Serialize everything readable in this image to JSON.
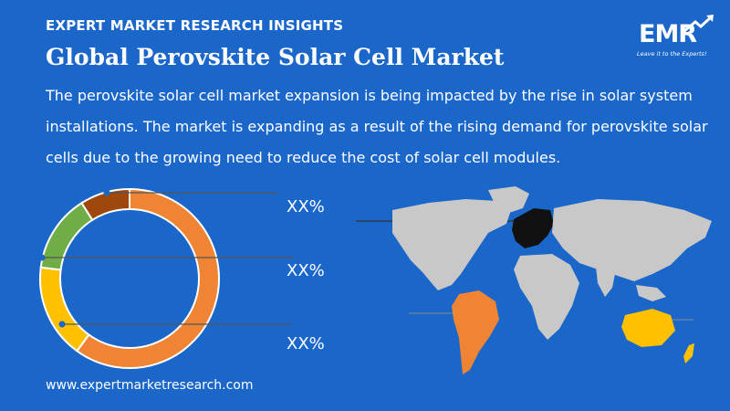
{
  "header": {
    "kicker": "EXPERT MARKET RESEARCH INSIGHTS",
    "title": "Global Perovskite Solar Cell Market",
    "description": "The perovskite solar cell market expansion is being impacted by the rise in solar system installations. The market is expanding as a result of the rising demand for perovskite solar cells due to the growing need to reduce the cost of solar cell modules."
  },
  "logo": {
    "mark": "EMR",
    "tagline": "Leave it to the Experts!"
  },
  "donut": {
    "segments": [
      {
        "name": "segment-orange",
        "value": 60,
        "color": "#ee8434"
      },
      {
        "name": "segment-yellow",
        "value": 17,
        "color": "#ffc000"
      },
      {
        "name": "segment-green",
        "value": 14,
        "color": "#70ad47"
      },
      {
        "name": "segment-brown",
        "value": 9,
        "color": "#9e480e"
      }
    ]
  },
  "labels": {
    "pct_1": "XX%",
    "pct_2": "XX%",
    "pct_3": "XX%"
  },
  "map": {
    "land_color": "#c8c8c8",
    "highlights": [
      {
        "region": "Europe",
        "color": "#000000"
      },
      {
        "region": "South America",
        "color": "#ee8434"
      },
      {
        "region": "Australia",
        "color": "#ffc000"
      }
    ]
  },
  "footer": {
    "url": "www.expertmarketresearch.com"
  }
}
